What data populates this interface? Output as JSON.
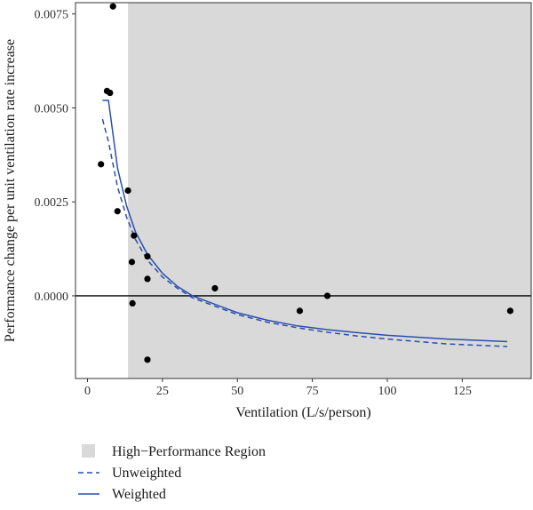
{
  "chart_data": {
    "type": "scatter",
    "xlabel": "Ventilation (L/s/person)",
    "ylabel": "Performance change per unit ventilation rate increase",
    "xlim": [
      -4,
      148
    ],
    "ylim": [
      -0.0022,
      0.0078
    ],
    "x_ticks": [
      0,
      25,
      50,
      75,
      100,
      125
    ],
    "x_tick_labels": [
      "0",
      "25",
      "50",
      "75",
      "100",
      "125"
    ],
    "y_ticks": [
      0.0,
      0.0025,
      0.005,
      0.0075
    ],
    "y_tick_labels": [
      "0.0000",
      "0.0025",
      "0.0050",
      "0.0075"
    ],
    "reference_line_y": 0,
    "shaded_region": {
      "label": "High−Performance Region",
      "x_from": 13.5,
      "color": "#d9d9d9"
    },
    "points": [
      {
        "x": 8.5,
        "y": 0.0077
      },
      {
        "x": 6.5,
        "y": 0.00545
      },
      {
        "x": 7.5,
        "y": 0.0054
      },
      {
        "x": 4.5,
        "y": 0.0035
      },
      {
        "x": 10.0,
        "y": 0.00225
      },
      {
        "x": 13.5,
        "y": 0.0028
      },
      {
        "x": 15.5,
        "y": 0.0016
      },
      {
        "x": 14.8,
        "y": 0.0009
      },
      {
        "x": 20.0,
        "y": 0.00105
      },
      {
        "x": 20.0,
        "y": 0.00045
      },
      {
        "x": 15.0,
        "y": -0.0002
      },
      {
        "x": 20.0,
        "y": -0.0017
      },
      {
        "x": 42.5,
        "y": 0.0002
      },
      {
        "x": 70.8,
        "y": -0.0004
      },
      {
        "x": 80.0,
        "y": 0.0
      },
      {
        "x": 141.0,
        "y": -0.0004
      }
    ],
    "series": [
      {
        "name": "Unweighted",
        "style": "dashed",
        "color": "#2b4fae",
        "x": [
          5,
          7,
          10,
          13,
          16,
          20,
          25,
          30,
          35,
          40,
          50,
          60,
          70,
          80,
          90,
          100,
          120,
          140
        ],
        "y": [
          0.0047,
          0.0041,
          0.0029,
          0.0021,
          0.0015,
          0.00095,
          0.0005,
          0.0002,
          -5e-05,
          -0.0002,
          -0.0005,
          -0.0007,
          -0.00085,
          -0.00097,
          -0.00107,
          -0.00115,
          -0.00128,
          -0.00135
        ]
      },
      {
        "name": "Weighted",
        "style": "solid",
        "color": "#2b4fae",
        "x": [
          5,
          7,
          10,
          13,
          16,
          20,
          25,
          30,
          35,
          40,
          50,
          60,
          70,
          80,
          90,
          100,
          120,
          140
        ],
        "y": [
          0.0052,
          0.0052,
          0.0034,
          0.0024,
          0.0017,
          0.0011,
          0.0006,
          0.00025,
          0.0,
          -0.00015,
          -0.00045,
          -0.00065,
          -0.0008,
          -0.0009,
          -0.00098,
          -0.00105,
          -0.00115,
          -0.00122
        ]
      }
    ],
    "legend": [
      {
        "label": "High−Performance Region",
        "kind": "box",
        "color": "#d9d9d9"
      },
      {
        "label": "Unweighted",
        "kind": "dashed",
        "color": "#2b4fae"
      },
      {
        "label": "Weighted",
        "kind": "solid",
        "color": "#2b4fae"
      }
    ],
    "legend_position": "bottom-left",
    "grid": false
  }
}
